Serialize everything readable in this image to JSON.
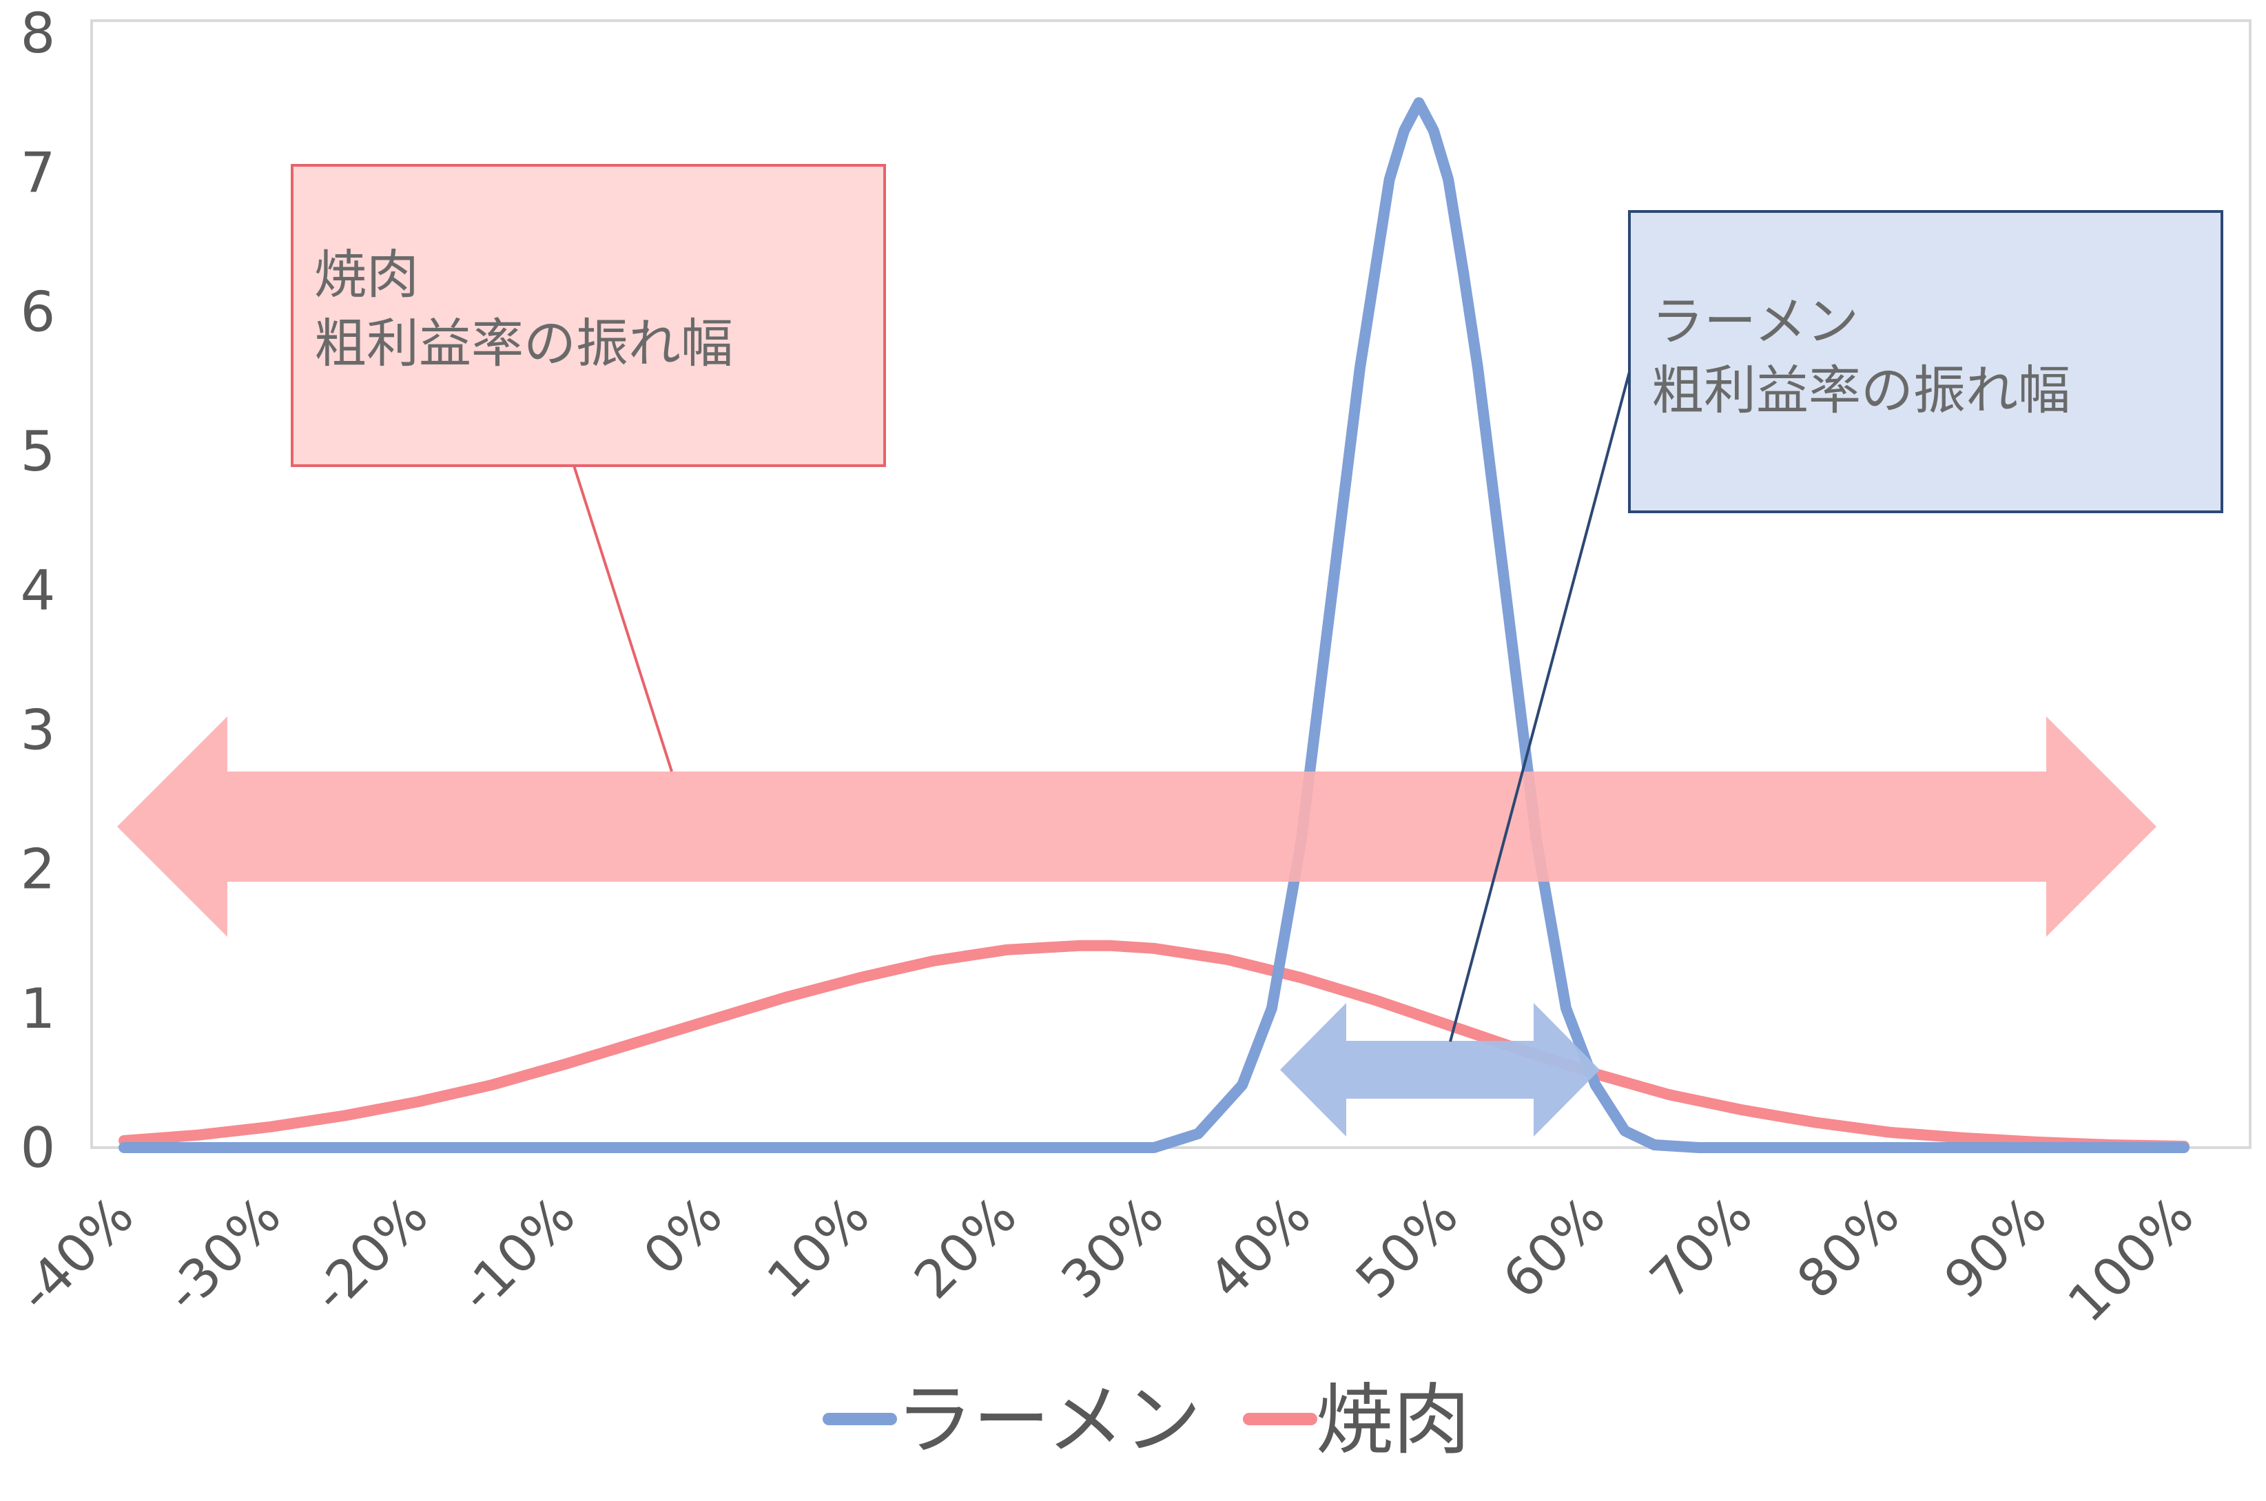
{
  "chart_data": {
    "type": "line",
    "x_ticks": [
      "-40%",
      "-30%",
      "-20%",
      "-10%",
      "0%",
      "10%",
      "20%",
      "30%",
      "40%",
      "50%",
      "60%",
      "70%",
      "80%",
      "90%",
      "100%"
    ],
    "y_ticks": [
      "0",
      "1",
      "2",
      "3",
      "4",
      "5",
      "6",
      "7",
      "8"
    ],
    "xlim": [
      -40,
      100
    ],
    "ylim": [
      0,
      8
    ],
    "grid": false,
    "legend_position": "bottom",
    "series": [
      {
        "name": "ラーメン",
        "color": "#7f9fd7",
        "x": [
          -40,
          -30,
          -20,
          -10,
          0,
          10,
          20,
          25,
          30,
          33,
          36,
          38,
          40,
          42,
          44,
          46,
          47,
          48,
          49,
          50,
          51,
          52,
          54,
          56,
          58,
          60,
          62,
          64,
          67,
          70,
          80,
          90,
          100
        ],
        "y": [
          0,
          0,
          0,
          0,
          0,
          0,
          0,
          0,
          0,
          0.1,
          0.45,
          1.0,
          2.2,
          3.9,
          5.6,
          6.95,
          7.3,
          7.5,
          7.3,
          6.95,
          6.3,
          5.6,
          3.9,
          2.2,
          1.0,
          0.45,
          0.12,
          0.02,
          0,
          0,
          0,
          0,
          0
        ]
      },
      {
        "name": "焼肉",
        "color": "#f68a8f",
        "x": [
          -40,
          -35,
          -30,
          -25,
          -20,
          -15,
          -10,
          -5,
          0,
          5,
          10,
          15,
          20,
          25,
          27,
          30,
          35,
          40,
          45,
          50,
          55,
          60,
          65,
          70,
          75,
          80,
          85,
          90,
          95,
          100
        ],
        "y": [
          0.05,
          0.09,
          0.15,
          0.23,
          0.33,
          0.45,
          0.6,
          0.76,
          0.92,
          1.08,
          1.22,
          1.34,
          1.42,
          1.45,
          1.45,
          1.43,
          1.35,
          1.22,
          1.06,
          0.88,
          0.7,
          0.53,
          0.38,
          0.27,
          0.18,
          0.11,
          0.07,
          0.04,
          0.02,
          0.01
        ]
      }
    ],
    "annotations": [
      {
        "id": "yakiniku",
        "lines": [
          "焼肉",
          "粗利益率の振れ幅"
        ],
        "fill": "#ffd8d8",
        "border": "#e8636a",
        "range": [
          -40,
          100
        ],
        "arrow_color": "#fdafb1"
      },
      {
        "id": "ramen",
        "lines": [
          "ラーメン",
          "粗利益率の振れ幅"
        ],
        "fill": "#dae3f3",
        "border": "#2c4874",
        "range": [
          42,
          63
        ],
        "arrow_color": "#a6bde5"
      }
    ]
  }
}
